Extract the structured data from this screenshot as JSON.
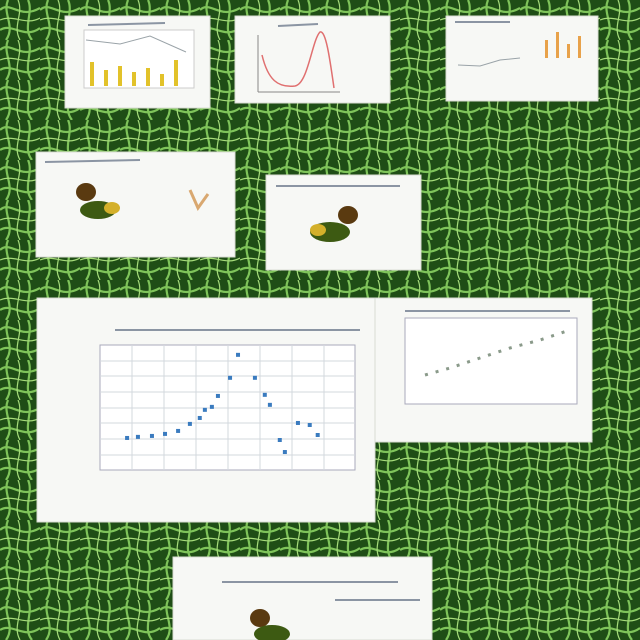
{
  "chart_data": {
    "type": "scatter",
    "x": [
      0.85,
      1.19,
      1.63,
      2.04,
      2.45,
      2.82,
      3.13,
      3.29,
      3.51,
      3.7,
      4.08,
      4.33,
      4.86,
      5.17,
      5.33,
      5.64,
      5.8,
      6.21,
      6.58,
      6.83
    ],
    "values": [
      2.05,
      2.12,
      2.18,
      2.31,
      2.5,
      2.95,
      3.33,
      3.85,
      4.04,
      4.74,
      5.9,
      7.37,
      5.9,
      4.81,
      4.17,
      1.92,
      1.15,
      3.01,
      2.88,
      2.24
    ],
    "xlim": [
      0,
      8
    ],
    "ylim": [
      0,
      8
    ],
    "color": "#3a7bbf"
  }
}
